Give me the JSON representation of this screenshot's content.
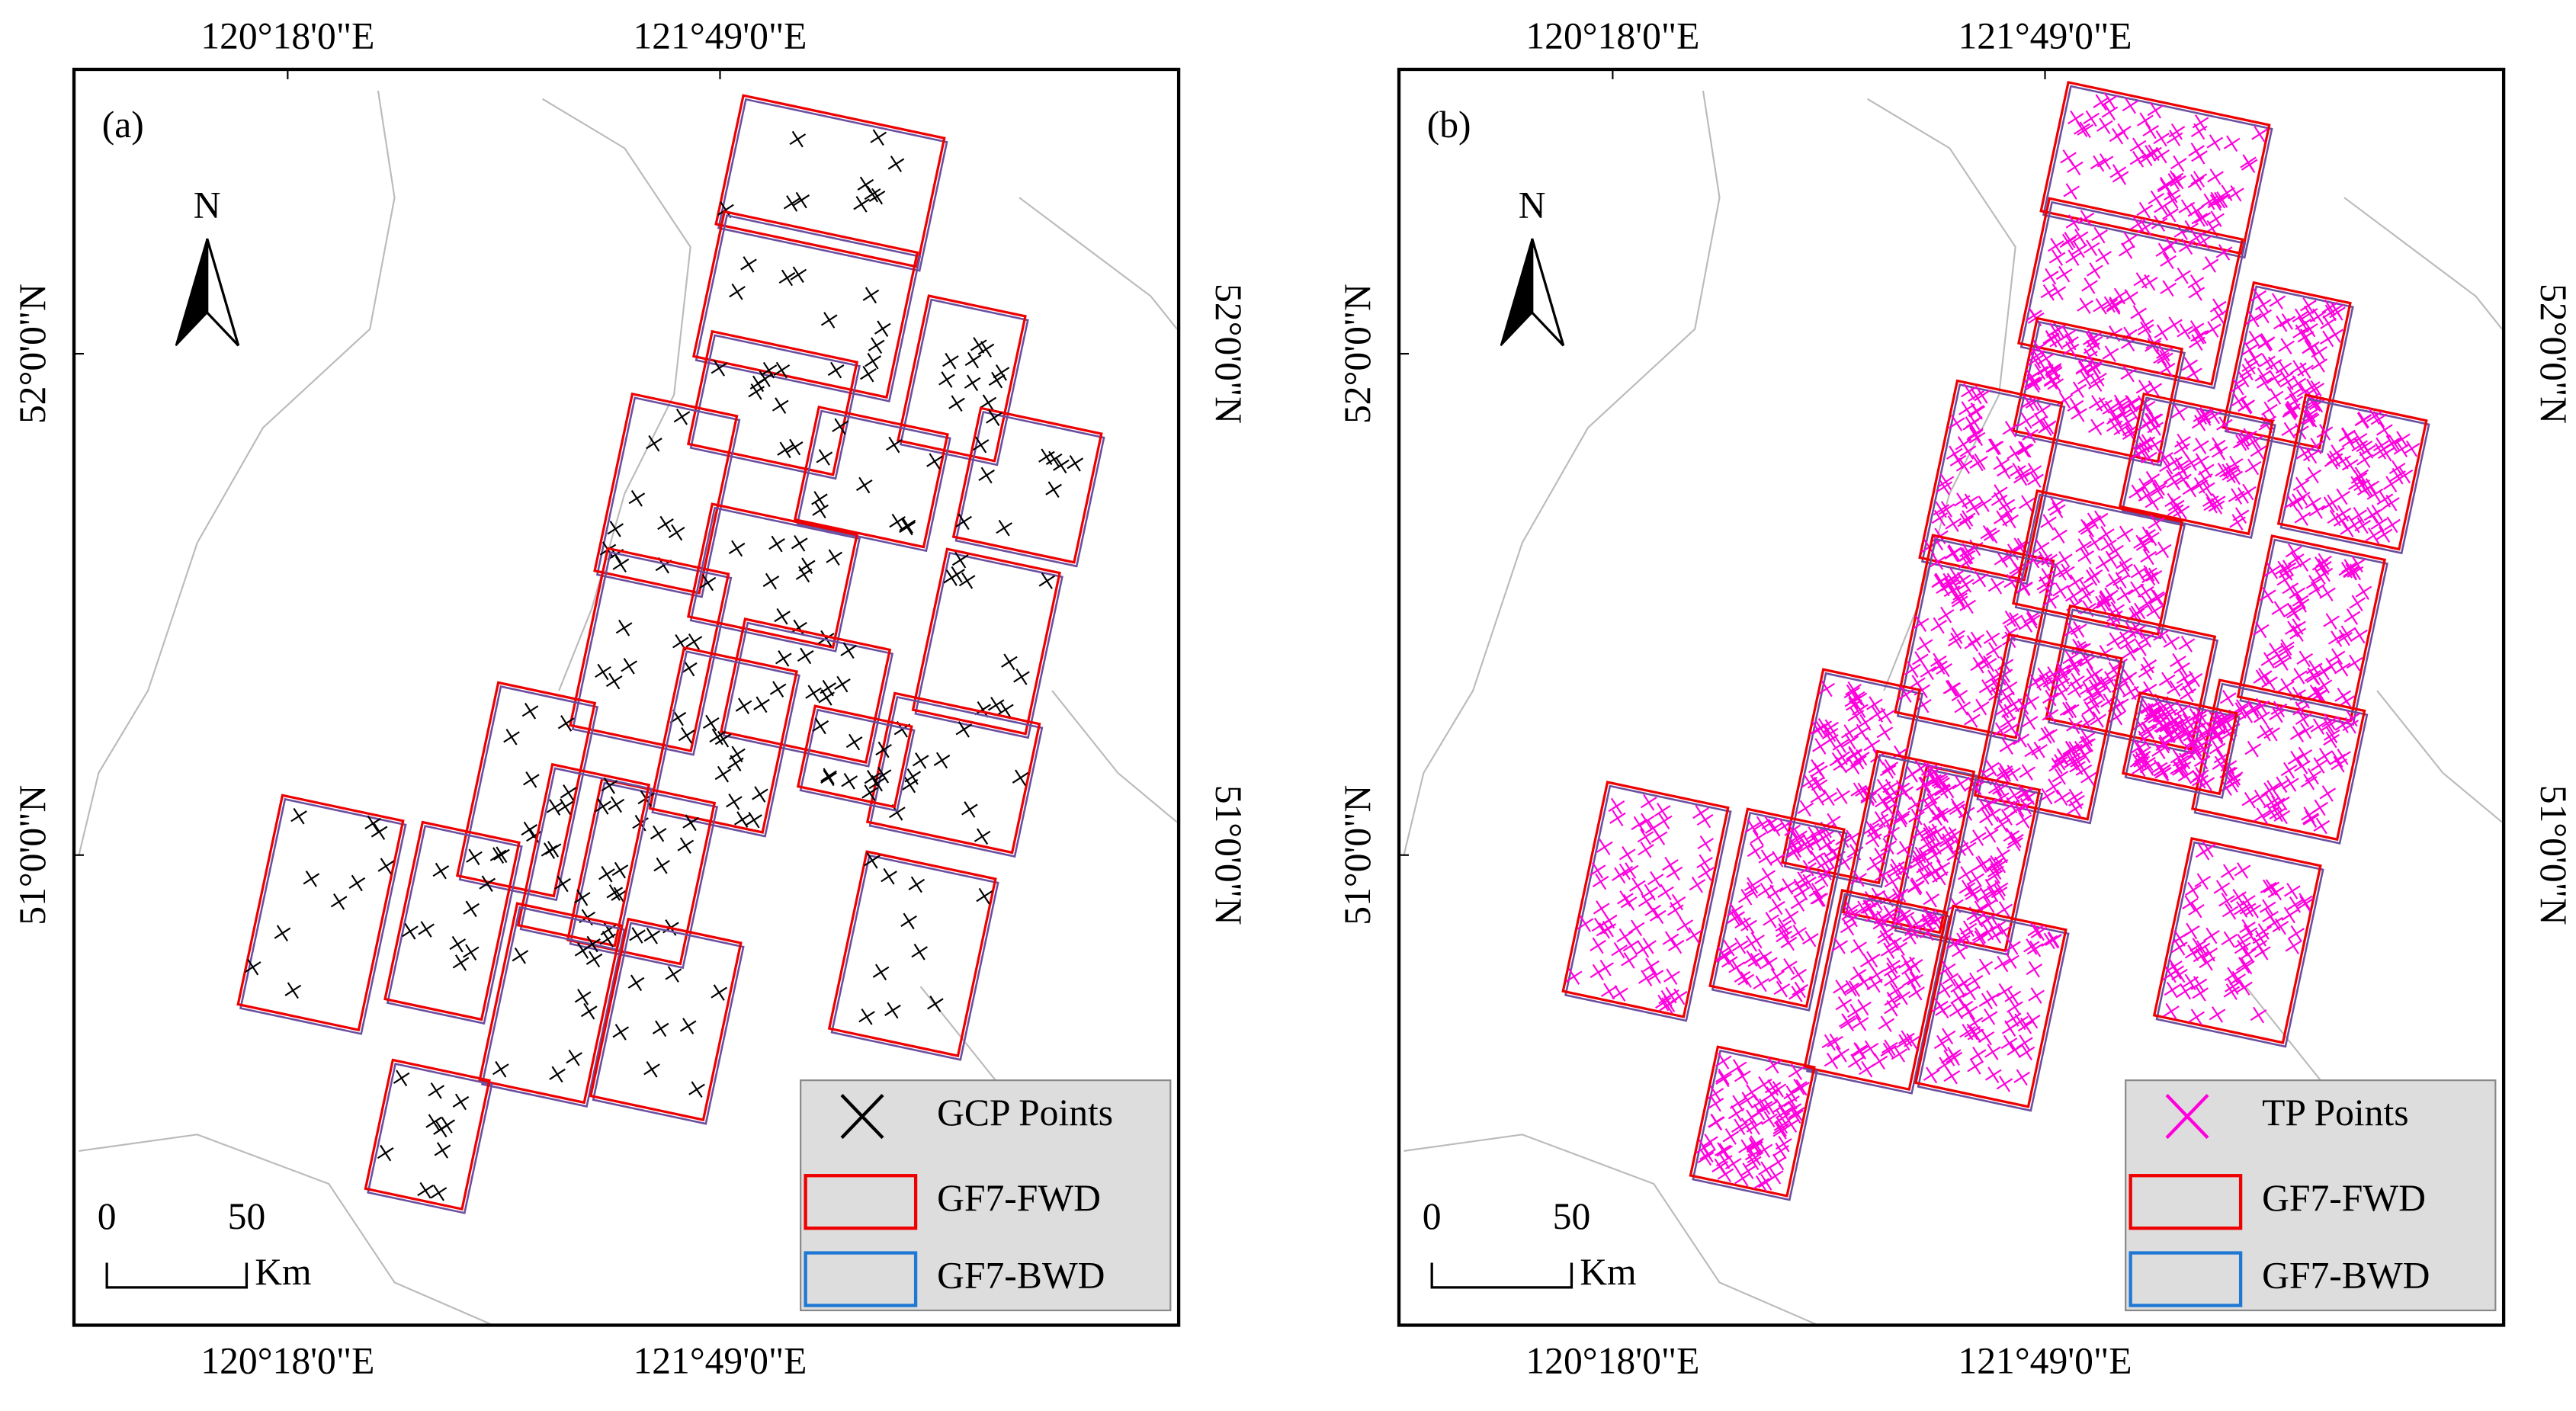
{
  "panels": [
    {
      "label": "(a)",
      "top_ticks": [
        "120°18'0\"E",
        "121°49'0\"E"
      ],
      "bottom_ticks": [
        "120°18'0\"E",
        "121°49'0\"E"
      ],
      "left_ticks": [
        "52°0'0\"N",
        "51°0'0\"N"
      ],
      "right_ticks": [
        "52°0'0\"N",
        "51°0'0\"N"
      ],
      "north": "N",
      "scale": {
        "ticks": [
          "0",
          "50"
        ],
        "unit": "Km"
      },
      "legend": [
        "GCP Points",
        "GF7-FWD",
        "GF7-BWD"
      ]
    },
    {
      "label": "(b)",
      "top_ticks": [
        "120°18'0\"E",
        "121°49'0\"E"
      ],
      "bottom_ticks": [
        "120°18'0\"E",
        "121°49'0\"E"
      ],
      "left_ticks": [
        "52°0'0\"N",
        "51°0'0\"N"
      ],
      "right_ticks": [
        "52°0'0\"N",
        "51°0'0\"N"
      ],
      "north": "N",
      "scale": {
        "ticks": [
          "0",
          "50"
        ],
        "unit": "Km"
      },
      "legend": [
        "TP Points",
        "GF7-FWD",
        "GF7-BWD"
      ]
    }
  ]
}
